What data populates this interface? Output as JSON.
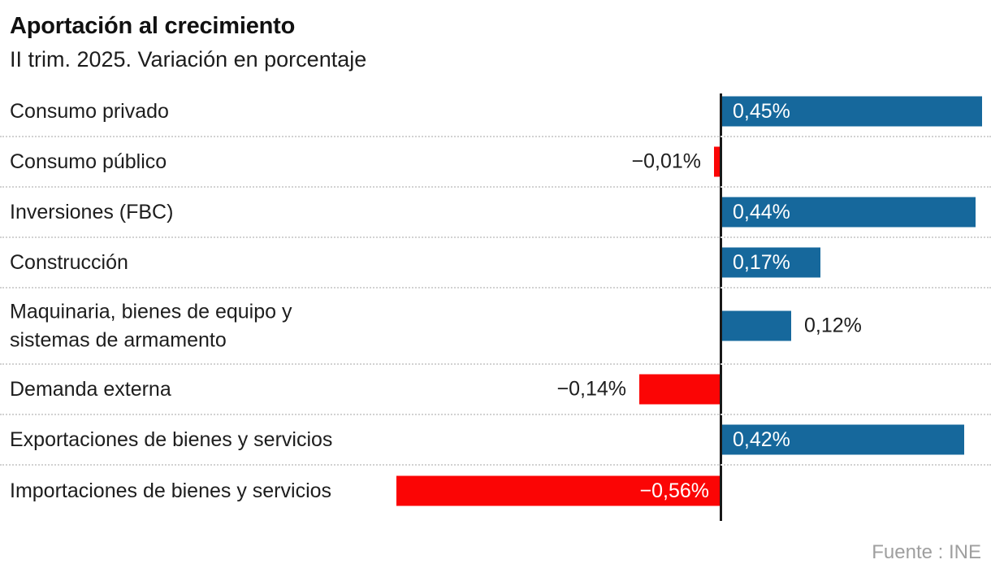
{
  "header": {
    "title": "Aportación al crecimiento",
    "subtitle": "II trim. 2025. Variación en porcentaje"
  },
  "source": {
    "label": "Fuente : INE"
  },
  "chart_data": {
    "type": "bar",
    "orientation": "horizontal",
    "title": "Aportación al crecimiento",
    "subtitle": "II trim. 2025. Variación en porcentaje",
    "unit": "%",
    "baseline": 0,
    "xlim": [
      -0.56,
      0.45
    ],
    "grid": "dotted-row-separators",
    "legend": "none",
    "categories": [
      "Consumo privado",
      "Consumo público",
      "Inversiones (FBC)",
      "Construcción",
      "Maquinaria, bienes de equipo y\nsistemas de armamento",
      "Demanda externa",
      "Exportaciones de bienes y servicios",
      "Importaciones de bienes y servicios"
    ],
    "values": [
      0.45,
      -0.01,
      0.44,
      0.17,
      0.12,
      -0.14,
      0.42,
      -0.56
    ],
    "value_labels": [
      "0,45%",
      "−0,01%",
      "0,44%",
      "0,17%",
      "0,12%",
      "−0,14%",
      "0,42%",
      "−0,56%"
    ],
    "colors": {
      "positive": "#16689c",
      "negative": "#fb0505",
      "axis": "#191919",
      "separator": "#d2d2d2",
      "text": "#1d1d1d",
      "value_inside_text": "#ffffff",
      "source_text": "#9f9f9f"
    }
  }
}
